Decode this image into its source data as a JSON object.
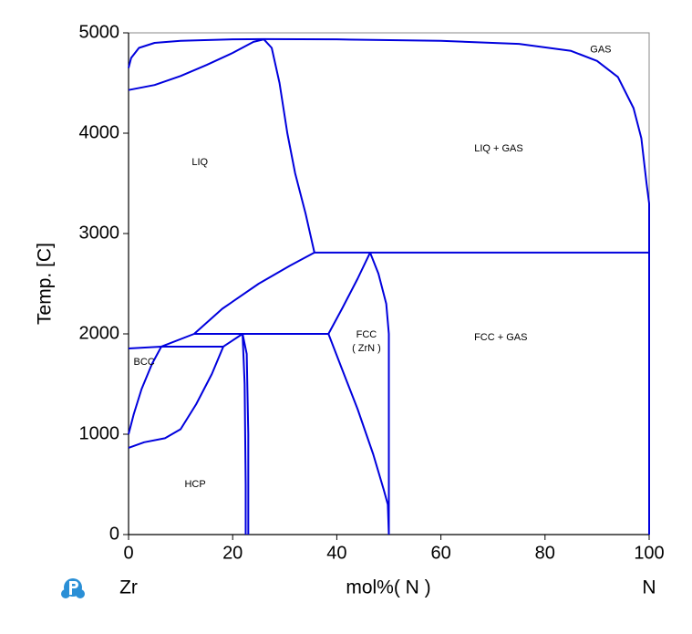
{
  "chart_data": {
    "type": "line",
    "xlabel": "mol%( N )",
    "ylabel": "Temp.  [C]",
    "left_label": "Zr",
    "right_label": "N",
    "xlim": [
      0,
      100
    ],
    "ylim": [
      0,
      5000
    ],
    "xticks": [
      0,
      20,
      40,
      60,
      80,
      100
    ],
    "yticks": [
      0,
      1000,
      2000,
      3000,
      4000,
      5000
    ],
    "series": [
      {
        "color": "#0000dd",
        "x": [
          0,
          5,
          10,
          15,
          20,
          24,
          26
        ],
        "values": [
          4430,
          4480,
          4570,
          4680,
          4800,
          4910,
          4935
        ]
      },
      {
        "color": "#0000dd",
        "x": [
          0,
          0.5,
          2,
          5,
          10,
          20,
          26,
          40,
          60,
          75,
          85,
          90,
          94,
          97,
          98.5,
          99.5,
          100,
          100,
          100
        ],
        "values": [
          4650,
          4750,
          4850,
          4900,
          4920,
          4935,
          4937,
          4935,
          4920,
          4890,
          4820,
          4720,
          4560,
          4250,
          3950,
          3500,
          3300,
          2810,
          0
        ]
      },
      {
        "color": "#0000dd",
        "x": [
          26,
          27.5,
          29,
          30.5,
          32,
          34,
          35.7
        ],
        "values": [
          4935,
          4850,
          4500,
          4000,
          3600,
          3200,
          2810
        ]
      },
      {
        "color": "#0000dd",
        "x": [
          35.7,
          100
        ],
        "values": [
          2810,
          2810
        ]
      },
      {
        "color": "#0000dd",
        "x": [
          12.6,
          18,
          25,
          31,
          35.7
        ],
        "values": [
          2000,
          2250,
          2500,
          2680,
          2810
        ]
      },
      {
        "color": "#0000dd",
        "x": [
          38.4,
          41,
          44,
          46.4
        ],
        "values": [
          2000,
          2250,
          2550,
          2810
        ]
      },
      {
        "color": "#0000dd",
        "x": [
          46.4,
          48,
          49.5,
          50,
          50
        ],
        "values": [
          2810,
          2600,
          2300,
          2000,
          0
        ]
      },
      {
        "color": "#0000dd",
        "x": [
          38.4,
          41,
          44,
          47,
          49,
          49.8,
          50
        ],
        "values": [
          2000,
          1650,
          1250,
          800,
          450,
          300,
          0
        ]
      },
      {
        "color": "#0000dd",
        "x": [
          12.6,
          38.4
        ],
        "values": [
          2000,
          2000
        ]
      },
      {
        "color": "#0000dd",
        "x": [
          21.9,
          22.7,
          23,
          23
        ],
        "values": [
          2000,
          1800,
          1000,
          0
        ]
      },
      {
        "color": "#0000dd",
        "x": [
          21.9,
          22.3,
          22.5,
          22.5
        ],
        "values": [
          2000,
          1500,
          500,
          0
        ]
      },
      {
        "color": "#0000dd",
        "x": [
          18.2,
          21.9
        ],
        "values": [
          1873,
          2000
        ]
      },
      {
        "color": "#0000dd",
        "x": [
          6.3,
          18.2
        ],
        "values": [
          1873,
          1873
        ]
      },
      {
        "color": "#0000dd",
        "x": [
          6.3,
          12.6
        ],
        "values": [
          1873,
          2000
        ]
      },
      {
        "color": "#0000dd",
        "x": [
          0,
          6.3
        ],
        "values": [
          1855,
          1873
        ]
      },
      {
        "color": "#0000dd",
        "x": [
          0,
          3,
          7,
          10,
          13,
          16,
          18.2
        ],
        "values": [
          864,
          920,
          960,
          1050,
          1300,
          1600,
          1873
        ]
      },
      {
        "color": "#0000dd",
        "x": [
          0,
          1,
          2.5,
          4.5,
          6.3
        ],
        "values": [
          1000,
          1200,
          1450,
          1700,
          1873
        ]
      }
    ],
    "annotations": [
      {
        "text": "GAS",
        "x": 90.7,
        "y": 4830
      },
      {
        "text": "LIQ + GAS",
        "x": 71.1,
        "y": 3845
      },
      {
        "text": "LIQ",
        "x": 13.7,
        "y": 3710
      },
      {
        "text": "FCC + GAS",
        "x": 71.5,
        "y": 1964
      },
      {
        "text": "FCC",
        "x": 45.7,
        "y": 1990
      },
      {
        "text": "( ZrN )",
        "x": 45.7,
        "y": 1855
      },
      {
        "text": "BCC",
        "x": 3.0,
        "y": 1718
      },
      {
        "text": "HCP",
        "x": 12.8,
        "y": 500
      }
    ]
  }
}
